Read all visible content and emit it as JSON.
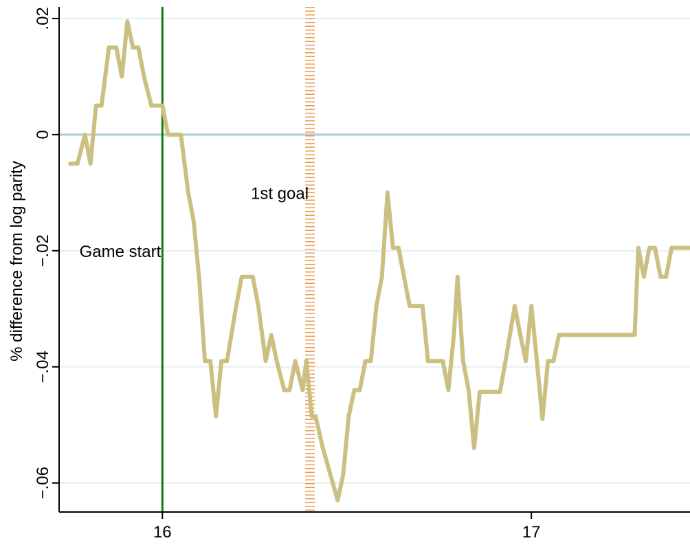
{
  "chart_data": {
    "type": "line",
    "title": "",
    "xlabel": "",
    "ylabel": "% difference from log parity",
    "xlim": [
      15.72,
      17.43
    ],
    "ylim": [
      -0.065,
      0.022
    ],
    "xticks": [
      16,
      17
    ],
    "xtick_labels": [
      "16",
      "17"
    ],
    "yticks": [
      0.02,
      0,
      -0.02,
      -0.04,
      -0.06
    ],
    "ytick_labels": [
      ".02",
      "0",
      "−.02",
      "−.04",
      "−.06"
    ],
    "grid": true,
    "reference_line": {
      "y": 0,
      "color": "#a9ccd6"
    },
    "vlines": [
      {
        "x": 16.0,
        "label": "Game start",
        "label_position": "left",
        "label_y": -0.02,
        "color": "#0f7a0f",
        "style": "solid"
      },
      {
        "x": 16.4,
        "label": "1st goal",
        "label_position": "left",
        "label_y": -0.01,
        "color": "#ee9a4d",
        "style": "dashed"
      }
    ],
    "series": [
      {
        "color": "#cbc082",
        "x": [
          15.75,
          15.77,
          15.79,
          15.805,
          15.82,
          15.835,
          15.855,
          15.875,
          15.89,
          15.905,
          15.92,
          15.935,
          15.95,
          15.97,
          15.985,
          16.0,
          16.015,
          16.035,
          16.05,
          16.07,
          16.085,
          16.1,
          16.115,
          16.13,
          16.145,
          16.16,
          16.175,
          16.2,
          16.215,
          16.23,
          16.245,
          16.26,
          16.28,
          16.295,
          16.31,
          16.33,
          16.345,
          16.36,
          16.38,
          16.39,
          16.405,
          16.415,
          16.435,
          16.455,
          16.475,
          16.49,
          16.505,
          16.52,
          16.535,
          16.55,
          16.565,
          16.58,
          16.595,
          16.61,
          16.625,
          16.64,
          16.655,
          16.67,
          16.69,
          16.705,
          16.72,
          16.74,
          16.76,
          16.775,
          16.79,
          16.8,
          16.815,
          16.83,
          16.845,
          16.86,
          16.875,
          16.885,
          16.9,
          16.915,
          16.93,
          16.955,
          16.97,
          16.985,
          17.0,
          17.015,
          17.03,
          17.045,
          17.06,
          17.075,
          17.09,
          17.105,
          17.12,
          17.14,
          17.16,
          17.18,
          17.2,
          17.22,
          17.25,
          17.28,
          17.29,
          17.305,
          17.32,
          17.335,
          17.35,
          17.365,
          17.38,
          17.395,
          17.41,
          17.43
        ],
        "y": [
          -0.005,
          -0.005,
          0.0,
          -0.005,
          0.005,
          0.005,
          0.015,
          0.015,
          0.01,
          0.0195,
          0.015,
          0.015,
          0.01,
          0.005,
          0.005,
          0.005,
          0.0,
          0.0,
          0.0,
          -0.01,
          -0.015,
          -0.025,
          -0.039,
          -0.039,
          -0.0485,
          -0.039,
          -0.039,
          -0.0295,
          -0.0245,
          -0.0245,
          -0.0245,
          -0.0295,
          -0.039,
          -0.0345,
          -0.039,
          -0.044,
          -0.044,
          -0.039,
          -0.044,
          -0.039,
          -0.0485,
          -0.0485,
          -0.054,
          -0.0585,
          -0.063,
          -0.0585,
          -0.0485,
          -0.044,
          -0.044,
          -0.039,
          -0.039,
          -0.0295,
          -0.0245,
          -0.01,
          -0.0195,
          -0.0195,
          -0.0245,
          -0.0295,
          -0.0295,
          -0.0295,
          -0.039,
          -0.039,
          -0.039,
          -0.044,
          -0.0345,
          -0.0245,
          -0.039,
          -0.044,
          -0.054,
          -0.0443,
          -0.0443,
          -0.0443,
          -0.0443,
          -0.0443,
          -0.039,
          -0.0295,
          -0.0345,
          -0.039,
          -0.0295,
          -0.039,
          -0.049,
          -0.039,
          -0.039,
          -0.0345,
          -0.0345,
          -0.0345,
          -0.0345,
          -0.0345,
          -0.0345,
          -0.0345,
          -0.0345,
          -0.0345,
          -0.0345,
          -0.0345,
          -0.0195,
          -0.0245,
          -0.0195,
          -0.0195,
          -0.0245,
          -0.0245,
          -0.0195,
          -0.0195,
          -0.0195,
          -0.0195
        ]
      }
    ]
  }
}
